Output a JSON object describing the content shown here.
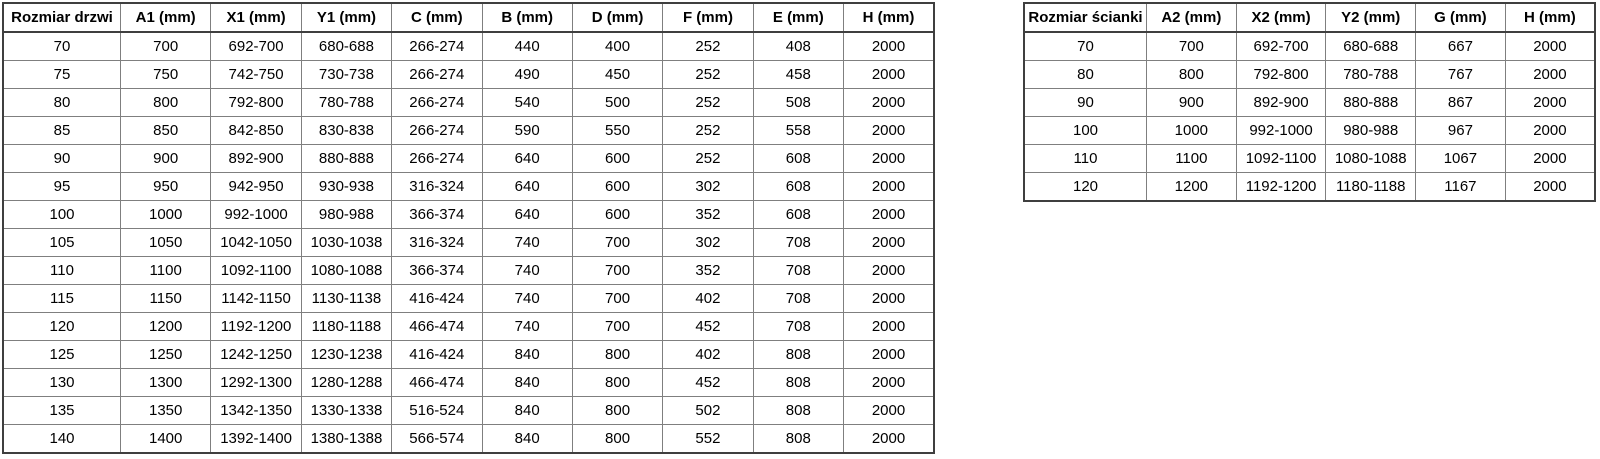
{
  "doors_table": {
    "headers": [
      "Rozmiar drzwi",
      "A1 (mm)",
      "X1 (mm)",
      "Y1 (mm)",
      "C (mm)",
      "B (mm)",
      "D (mm)",
      "F (mm)",
      "E (mm)",
      "H (mm)"
    ],
    "rows": [
      [
        "70",
        "700",
        "692-700",
        "680-688",
        "266-274",
        "440",
        "400",
        "252",
        "408",
        "2000"
      ],
      [
        "75",
        "750",
        "742-750",
        "730-738",
        "266-274",
        "490",
        "450",
        "252",
        "458",
        "2000"
      ],
      [
        "80",
        "800",
        "792-800",
        "780-788",
        "266-274",
        "540",
        "500",
        "252",
        "508",
        "2000"
      ],
      [
        "85",
        "850",
        "842-850",
        "830-838",
        "266-274",
        "590",
        "550",
        "252",
        "558",
        "2000"
      ],
      [
        "90",
        "900",
        "892-900",
        "880-888",
        "266-274",
        "640",
        "600",
        "252",
        "608",
        "2000"
      ],
      [
        "95",
        "950",
        "942-950",
        "930-938",
        "316-324",
        "640",
        "600",
        "302",
        "608",
        "2000"
      ],
      [
        "100",
        "1000",
        "992-1000",
        "980-988",
        "366-374",
        "640",
        "600",
        "352",
        "608",
        "2000"
      ],
      [
        "105",
        "1050",
        "1042-1050",
        "1030-1038",
        "316-324",
        "740",
        "700",
        "302",
        "708",
        "2000"
      ],
      [
        "110",
        "1100",
        "1092-1100",
        "1080-1088",
        "366-374",
        "740",
        "700",
        "352",
        "708",
        "2000"
      ],
      [
        "115",
        "1150",
        "1142-1150",
        "1130-1138",
        "416-424",
        "740",
        "700",
        "402",
        "708",
        "2000"
      ],
      [
        "120",
        "1200",
        "1192-1200",
        "1180-1188",
        "466-474",
        "740",
        "700",
        "452",
        "708",
        "2000"
      ],
      [
        "125",
        "1250",
        "1242-1250",
        "1230-1238",
        "416-424",
        "840",
        "800",
        "402",
        "808",
        "2000"
      ],
      [
        "130",
        "1300",
        "1292-1300",
        "1280-1288",
        "466-474",
        "840",
        "800",
        "452",
        "808",
        "2000"
      ],
      [
        "135",
        "1350",
        "1342-1350",
        "1330-1338",
        "516-524",
        "840",
        "800",
        "502",
        "808",
        "2000"
      ],
      [
        "140",
        "1400",
        "1392-1400",
        "1380-1388",
        "566-574",
        "840",
        "800",
        "552",
        "808",
        "2000"
      ]
    ]
  },
  "walls_table": {
    "headers": [
      "Rozmiar ścianki",
      "A2 (mm)",
      "X2 (mm)",
      "Y2 (mm)",
      "G (mm)",
      "H (mm)"
    ],
    "rows": [
      [
        "70",
        "700",
        "692-700",
        "680-688",
        "667",
        "2000"
      ],
      [
        "80",
        "800",
        "792-800",
        "780-788",
        "767",
        "2000"
      ],
      [
        "90",
        "900",
        "892-900",
        "880-888",
        "867",
        "2000"
      ],
      [
        "100",
        "1000",
        "992-1000",
        "980-988",
        "967",
        "2000"
      ],
      [
        "110",
        "1100",
        "1092-1100",
        "1080-1088",
        "1067",
        "2000"
      ],
      [
        "120",
        "1200",
        "1192-1200",
        "1180-1188",
        "1167",
        "2000"
      ]
    ]
  },
  "colors": {
    "background": "#ffffff",
    "text": "#000000",
    "border_outer": "#3f3f3f",
    "border_inner": "#7f7f7f"
  }
}
